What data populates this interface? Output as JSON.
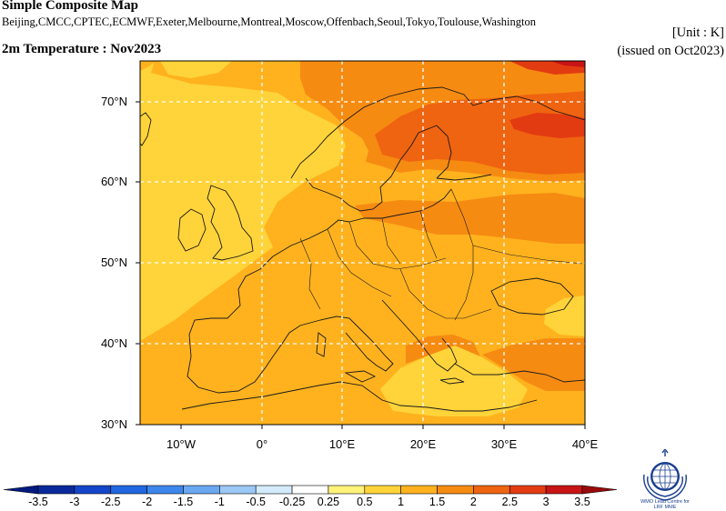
{
  "header": {
    "title": "Simple Composite Map",
    "models": "Beijing,CMCC,CPTEC,ECMWF,Exeter,Melbourne,Montreal,Moscow,Offenbach,Seoul,Tokyo,Toulouse,Washington",
    "variable": "2m Temperature : Nov2023",
    "unit": "[Unit : K]",
    "issued": "(issued on Oct2023)"
  },
  "map": {
    "region": "Europe",
    "lat_range": [
      30,
      75
    ],
    "lon_range": [
      -15,
      40
    ],
    "lat_labels": [
      "70°N",
      "60°N",
      "50°N",
      "40°N",
      "30°N"
    ],
    "lon_labels": [
      "10°W",
      "0°",
      "10°E",
      "20°E",
      "30°E",
      "40°E"
    ],
    "gridlines": "dashed"
  },
  "colorbar": {
    "labels": [
      "-3.5",
      "-3",
      "-2.5",
      "-2",
      "-1.5",
      "-1",
      "-0.5",
      "-0.25",
      "0.25",
      "0.5",
      "1",
      "1.5",
      "2",
      "2.5",
      "3",
      "3.5"
    ],
    "colors": [
      "#0a2a9c",
      "#1346c8",
      "#1f66e0",
      "#3d86ec",
      "#6aa8f2",
      "#9cc8f6",
      "#d4ebfb",
      "#ffffff",
      "#fff37a",
      "#ffd43a",
      "#ffb21e",
      "#f68b12",
      "#ef6410",
      "#e23b12",
      "#c81414"
    ],
    "low_end_color": "#001a80",
    "high_end_color": "#9a0a0a"
  },
  "logo": {
    "icon": "wmo-emblem-icon",
    "text": "WMO Lead Centre for LRF MME"
  }
}
